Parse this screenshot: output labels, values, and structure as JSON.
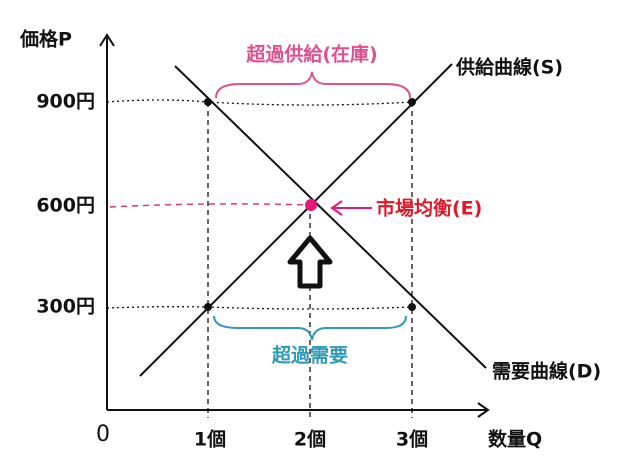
{
  "axes": {
    "y_label": "価格P",
    "x_label": "数量Q",
    "origin": "0"
  },
  "y_ticks": [
    "900円",
    "600円",
    "300円"
  ],
  "x_ticks": [
    "1個",
    "2個",
    "3個"
  ],
  "curves": {
    "supply": "供給曲線(S)",
    "demand": "需要曲線(D)"
  },
  "annotations": {
    "excess_supply": "超過供給(在庫)",
    "excess_demand": "超過需要",
    "equilibrium": "市場均衡(E)"
  }
}
